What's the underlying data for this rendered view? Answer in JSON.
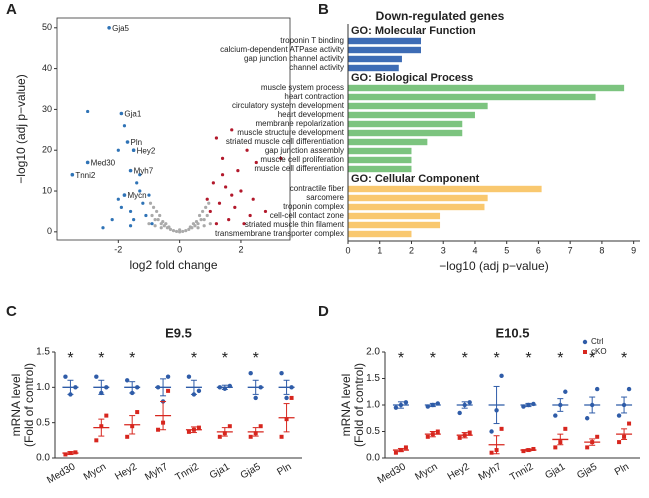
{
  "panel_labels": [
    "A",
    "B",
    "C",
    "D"
  ],
  "chart_data": [
    {
      "type": "scatter",
      "xlabel": "log2 fold change",
      "ylabel": "−log10 (adj p−value)",
      "xlim": [
        -4,
        3.6
      ],
      "ylim": [
        -2,
        52.4
      ],
      "xticks": [
        -2,
        0,
        2
      ],
      "yticks": [
        0,
        10,
        20,
        30,
        40,
        50
      ],
      "series": [
        {
          "color": "#aaaaaa",
          "x": [
            -0.9,
            -0.8,
            -0.7,
            -0.6,
            -0.5,
            -0.4,
            -0.3,
            -0.2,
            -0.1,
            0,
            0.1,
            0.2,
            0.3,
            0.4,
            0.5,
            0.6,
            0.7,
            0.8,
            0.9,
            -0.75,
            -0.55,
            -0.35,
            0.35,
            0.55,
            0.75,
            -0.85,
            0.85,
            -0.65,
            0.65,
            -0.45,
            0.45,
            -1.0,
            1.0,
            -0.95,
            0.95,
            -0.6,
            0.6,
            -0.8,
            0.8,
            0.0
          ],
          "y": [
            4,
            3,
            3,
            2,
            1.5,
            1,
            0.6,
            0.3,
            0.1,
            0,
            0.1,
            0.3,
            0.6,
            1,
            1.5,
            2,
            3,
            3,
            4,
            5,
            2.5,
            1.2,
            1.2,
            2.5,
            5,
            6,
            6,
            4,
            4,
            2,
            2,
            2,
            2,
            7,
            7,
            1,
            1,
            1.5,
            1.5,
            0.5
          ]
        },
        {
          "color": "#2f73b6",
          "x": [
            -3.0,
            -2.0,
            -1.8,
            -2.2,
            -2.0,
            -1.9,
            -1.6,
            -1.4,
            -1.3,
            -1.2,
            -1.1,
            -1.5,
            -1.0,
            -0.9,
            -2.5,
            -1.3,
            -1.6
          ],
          "y": [
            29.5,
            20,
            26,
            3,
            8,
            6,
            5,
            12,
            10,
            7,
            4,
            3,
            9,
            2,
            1,
            14,
            1.5
          ]
        },
        {
          "color": "#b2182b",
          "x": [
            1.2,
            1.7,
            2.2,
            2.5,
            1.4,
            1.9,
            1.1,
            1.5,
            2.0,
            2.4,
            1.3,
            1.8,
            2.8,
            1.0,
            1.6,
            2.1,
            1.2,
            3.3,
            0.9,
            1.4,
            2.3,
            1.7
          ],
          "y": [
            23,
            25,
            20,
            17,
            18,
            15,
            12,
            11,
            10,
            8,
            7,
            6,
            5,
            5,
            3,
            2,
            2,
            18,
            8,
            14,
            4,
            9
          ]
        }
      ],
      "annotations": [
        {
          "text": "Gja5",
          "x": -2.3,
          "y": 50,
          "color": "#2f73b6"
        },
        {
          "text": "Gja1",
          "x": -1.9,
          "y": 29,
          "color": "#2f73b6"
        },
        {
          "text": "Pln",
          "x": -1.7,
          "y": 22,
          "color": "#2f73b6"
        },
        {
          "text": "Hey2",
          "x": -1.5,
          "y": 20,
          "color": "#2f73b6"
        },
        {
          "text": "Med30",
          "x": -3.0,
          "y": 17,
          "color": "#2f73b6"
        },
        {
          "text": "Tnni2",
          "x": -3.5,
          "y": 14,
          "color": "#2f73b6"
        },
        {
          "text": "Myh7",
          "x": -1.6,
          "y": 15,
          "color": "#2f73b6"
        },
        {
          "text": "Mycn",
          "x": -1.8,
          "y": 9,
          "color": "#2f73b6"
        }
      ]
    },
    {
      "type": "bar",
      "orientation": "horizontal",
      "title": "Down-regulated genes",
      "xlabel": "−log10 (adj p−value)",
      "xlim": [
        0,
        9.2
      ],
      "xticks": [
        0,
        1,
        2,
        3,
        4,
        5,
        6,
        7,
        8,
        9
      ],
      "groups": [
        {
          "name": "GO: Molecular Function",
          "color": "#3e6cb5",
          "bar_color": "#3e6cb5",
          "categories": [
            "troponin T binding",
            "calcium-dependent ATPase activity",
            "gap junction channel activity",
            "channel activity"
          ],
          "values": [
            2.3,
            2.3,
            1.7,
            1.6
          ]
        },
        {
          "name": "GO: Biological Process",
          "color": "#56ad5b",
          "bar_color": "#7cc47f",
          "categories": [
            "muscle system process",
            "heart contraction",
            "circulatory system development",
            "heart development",
            "membrane repolarization",
            "muscle structure development",
            "striated muscle cell differentiation",
            "gap junction assembly",
            "muscle cell proliferation",
            "muscle cell differentiation"
          ],
          "values": [
            8.7,
            7.8,
            4.4,
            4.0,
            3.6,
            3.6,
            2.5,
            2.0,
            2.0,
            2.0
          ]
        },
        {
          "name": "GO: Cellular Component",
          "color": "#f2a12e",
          "bar_color": "#f9c86f",
          "categories": [
            "contractile fiber",
            "sarcomere",
            "troponin complex",
            "cell-cell contact zone",
            "striated muscle thin filament",
            "transmembrane transporter complex"
          ],
          "values": [
            6.1,
            4.4,
            4.3,
            2.9,
            2.9,
            2.0
          ]
        }
      ]
    },
    {
      "type": "dot",
      "title": "E9.5",
      "ylabel": [
        "mRNA level",
        "(Fold of control)"
      ],
      "ylim": [
        0,
        1.5
      ],
      "yticks": [
        {
          "value": 0,
          "label": "0.0"
        },
        0.5,
        {
          "value": 1,
          "label": "1.0"
        },
        1.5
      ],
      "categories": [
        "Med30",
        "Mycn",
        "Hey2",
        "Myh7",
        "Tnni2",
        "Gja1",
        "Gja5",
        "Pln"
      ],
      "significance": [
        "*",
        "*",
        "*",
        null,
        "*",
        "*",
        "*",
        null
      ],
      "series": [
        {
          "name": "Ctrl",
          "color": "#2f5ca8",
          "values": [
            1.0,
            1.0,
            1.0,
            1.0,
            1.0,
            1.0,
            1.0,
            1.0
          ],
          "errors": [
            0.1,
            0.1,
            0.08,
            0.12,
            0.1,
            0.03,
            0.1,
            0.1
          ],
          "points": [
            [
              1.15,
              0.9,
              1.0
            ],
            [
              1.15,
              0.92,
              1.0
            ],
            [
              1.1,
              0.92,
              1.0
            ],
            [
              1.0,
              0.8,
              1.15
            ],
            [
              1.15,
              0.9,
              0.95
            ],
            [
              1.0,
              0.98,
              1.02
            ],
            [
              1.2,
              0.85,
              1.0
            ],
            [
              1.2,
              0.85,
              1.0
            ]
          ]
        },
        {
          "name": "cKO",
          "color": "#d7261e",
          "values": [
            0.07,
            0.43,
            0.47,
            0.6,
            0.4,
            0.37,
            0.37,
            0.57
          ],
          "errors": [
            0.02,
            0.12,
            0.13,
            0.2,
            0.04,
            0.06,
            0.06,
            0.2
          ],
          "points": [
            [
              0.05,
              0.07,
              0.08
            ],
            [
              0.25,
              0.45,
              0.6
            ],
            [
              0.3,
              0.45,
              0.65
            ],
            [
              0.4,
              0.5,
              0.95
            ],
            [
              0.37,
              0.4,
              0.43
            ],
            [
              0.3,
              0.35,
              0.45
            ],
            [
              0.3,
              0.35,
              0.45
            ],
            [
              0.3,
              0.55,
              0.85
            ]
          ]
        }
      ]
    },
    {
      "type": "dot",
      "title": "E10.5",
      "ylabel": [
        "mRNA level",
        "(Fold of control)"
      ],
      "legend": "upper right",
      "ylim": [
        0,
        2.0
      ],
      "yticks": [
        {
          "value": 0,
          "label": "0.0"
        },
        0.5,
        {
          "value": 1,
          "label": "1.0"
        },
        1.5,
        {
          "value": 2,
          "label": "2.0"
        }
      ],
      "categories": [
        "Med30",
        "Mycn",
        "Hey2",
        "Myh7",
        "Tnni2",
        "Gja1",
        "Gja5",
        "Pln"
      ],
      "significance": [
        "*",
        "*",
        "*",
        "*",
        "*",
        "*",
        "*",
        "*"
      ],
      "series": [
        {
          "name": "Ctrl",
          "color": "#2f5ca8",
          "values": [
            1.0,
            1.0,
            1.0,
            1.0,
            1.0,
            1.0,
            1.0,
            1.0
          ],
          "errors": [
            0.06,
            0.03,
            0.06,
            0.35,
            0.03,
            0.12,
            0.15,
            0.15
          ],
          "points": [
            [
              0.95,
              1.0,
              1.05
            ],
            [
              0.97,
              1.0,
              1.03
            ],
            [
              0.85,
              1.0,
              1.05
            ],
            [
              0.5,
              0.9,
              1.55
            ],
            [
              0.97,
              1.0,
              1.02
            ],
            [
              0.8,
              1.0,
              1.25
            ],
            [
              0.75,
              1.0,
              1.3
            ],
            [
              0.8,
              1.0,
              1.3
            ]
          ]
        },
        {
          "name": "cKO",
          "color": "#d7261e",
          "values": [
            0.15,
            0.45,
            0.43,
            0.25,
            0.15,
            0.35,
            0.3,
            0.45
          ],
          "errors": [
            0.03,
            0.05,
            0.05,
            0.17,
            0.02,
            0.1,
            0.06,
            0.1
          ],
          "points": [
            [
              0.1,
              0.15,
              0.2
            ],
            [
              0.4,
              0.45,
              0.5
            ],
            [
              0.38,
              0.43,
              0.48
            ],
            [
              0.1,
              0.15,
              0.55
            ],
            [
              0.13,
              0.15,
              0.17
            ],
            [
              0.2,
              0.3,
              0.55
            ],
            [
              0.2,
              0.3,
              0.4
            ],
            [
              0.3,
              0.4,
              0.65
            ]
          ]
        }
      ]
    }
  ]
}
